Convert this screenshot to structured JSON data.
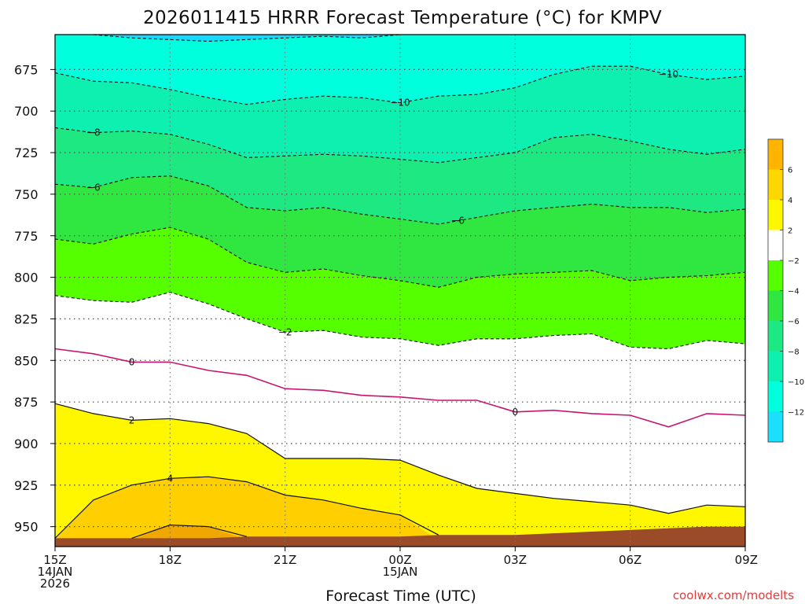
{
  "chart_data": {
    "type": "time-height contour",
    "title": "2026011415 HRRR Forecast Temperature (°C) for KMPV",
    "xlabel": "Forecast Time (UTC)",
    "ylabel": "",
    "credit": "coolwx.com/modelts",
    "x_ticks": [
      {
        "hour": 0,
        "lines": [
          "15Z",
          "14JAN",
          "2026"
        ]
      },
      {
        "hour": 3,
        "lines": [
          "18Z"
        ]
      },
      {
        "hour": 6,
        "lines": [
          "21Z"
        ]
      },
      {
        "hour": 9,
        "lines": [
          "00Z",
          "15JAN"
        ]
      },
      {
        "hour": 12,
        "lines": [
          "03Z"
        ]
      },
      {
        "hour": 15,
        "lines": [
          "06Z"
        ]
      },
      {
        "hour": 18,
        "lines": [
          "09Z"
        ]
      }
    ],
    "y_ticks": [
      675,
      700,
      725,
      750,
      775,
      800,
      825,
      850,
      875,
      900,
      925,
      950
    ],
    "xlim": [
      0,
      18
    ],
    "ylim_hpa": [
      962,
      654
    ],
    "grid": true,
    "contour_levels": [
      {
        "level": -12,
        "style": "dashed",
        "label": "",
        "pressures": [
          654,
          654,
          656,
          657,
          658,
          657,
          656,
          655,
          656,
          654,
          654,
          654,
          654,
          654,
          654,
          654,
          654,
          654,
          654
        ]
      },
      {
        "level": -10,
        "style": "dashed",
        "label": "−10",
        "pressures": [
          677,
          682,
          683,
          687,
          692,
          696,
          693,
          691,
          692,
          695,
          691,
          690,
          686,
          678,
          673,
          673,
          678,
          681,
          679
        ]
      },
      {
        "level": -8,
        "style": "dashed",
        "label": "−8",
        "pressures": [
          710,
          713,
          712,
          714,
          720,
          728,
          727,
          726,
          727,
          729,
          731,
          728,
          725,
          716,
          714,
          718,
          723,
          726,
          723
        ]
      },
      {
        "level": -6,
        "style": "dashed",
        "label": "−6",
        "pressures": [
          744,
          746,
          740,
          739,
          745,
          758,
          760,
          758,
          762,
          765,
          768,
          764,
          760,
          758,
          756,
          758,
          758,
          761,
          759
        ]
      },
      {
        "level": -4,
        "style": "dashed",
        "label": "",
        "pressures": [
          777,
          780,
          774,
          770,
          777,
          791,
          797,
          795,
          799,
          802,
          806,
          800,
          798,
          797,
          796,
          802,
          800,
          799,
          797
        ]
      },
      {
        "level": -2,
        "style": "dashed",
        "label": "−2",
        "pressures": [
          811,
          814,
          815,
          809,
          816,
          825,
          833,
          832,
          836,
          837,
          841,
          837,
          837,
          835,
          834,
          842,
          843,
          838,
          840
        ]
      },
      {
        "level": 0,
        "style": "solid-magenta",
        "label": "0",
        "pressures": [
          843,
          846,
          851,
          851,
          856,
          859,
          867,
          868,
          871,
          872,
          874,
          874,
          881,
          880,
          882,
          883,
          890,
          882,
          883
        ]
      },
      {
        "level": 2,
        "style": "solid",
        "label": "2",
        "pressures": [
          876,
          882,
          886,
          885,
          888,
          894,
          909,
          909,
          909,
          910,
          919,
          927,
          930,
          933,
          935,
          937,
          942,
          937,
          938
        ]
      },
      {
        "level": 4,
        "style": "solid",
        "label": "4",
        "pressures": [
          958,
          934,
          925,
          921,
          920,
          923,
          931,
          934,
          939,
          943,
          958,
          null,
          null,
          null,
          null,
          null,
          null,
          null,
          null
        ]
      },
      {
        "level": 6,
        "style": "solid",
        "label": "",
        "pressures": [
          null,
          null,
          958,
          949,
          950,
          958,
          null,
          null,
          null,
          null,
          null,
          null,
          null,
          null,
          null,
          null,
          null,
          null,
          null
        ]
      }
    ],
    "surface_pressure": [
      957,
      957,
      957,
      957,
      957,
      956,
      956,
      956,
      956,
      956,
      955,
      955,
      955,
      954,
      953,
      952,
      951,
      950,
      950
    ],
    "surface_color": "#9b4b28",
    "fill_colors": {
      "above_6": "#f0a800",
      "4_to_6": "#ffcf00",
      "2_to_4": "#fff700",
      "-2_to_2": "#ffffff",
      "-4_to_-2": "#55ff00",
      "-6_to_-4": "#30e640",
      "-8_to_-6": "#1ee882",
      "-10_to_-8": "#0ef0b0",
      "-12_to_-10": "#00ffdc",
      "below_-12": "#19d8ff"
    },
    "colorbar": {
      "ticks": [
        "6",
        "4",
        "2",
        "−2",
        "−4",
        "−6",
        "−8",
        "−10",
        "−12"
      ],
      "swatches": [
        "#ffb400",
        "#ffd700",
        "#fff700",
        "#ffffff",
        "#55ff00",
        "#30e640",
        "#1ee882",
        "#0ef0b0",
        "#00ffdc",
        "#1adfff"
      ]
    }
  }
}
